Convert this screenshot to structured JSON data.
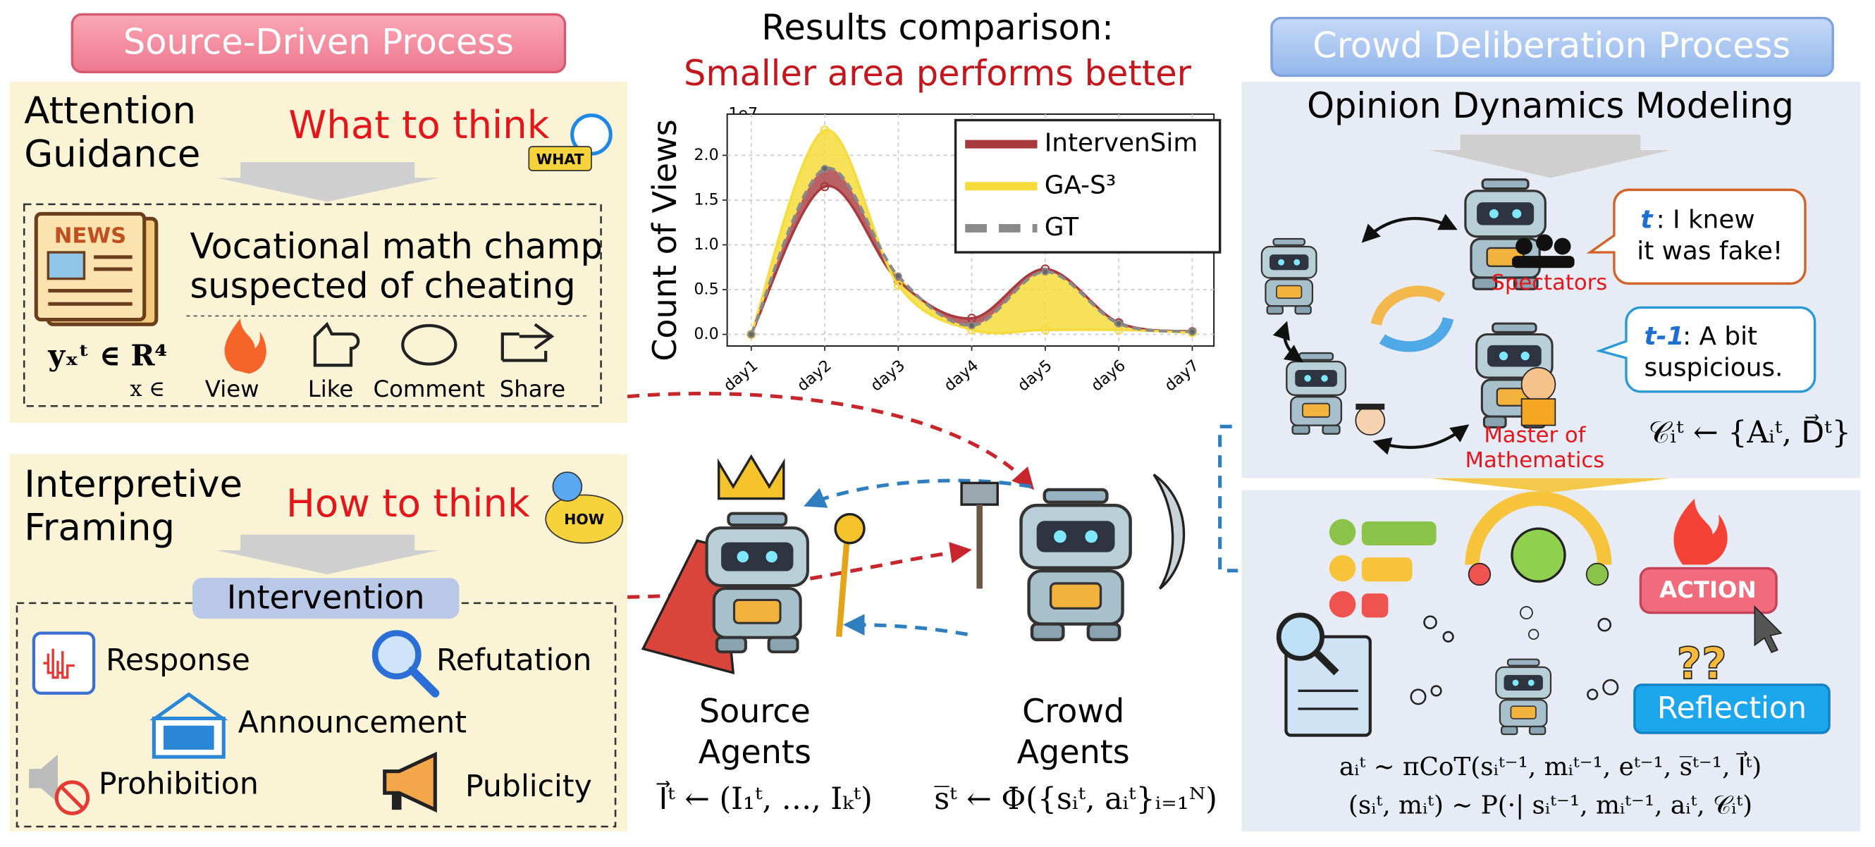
{
  "left": {
    "title": "Source-Driven Process",
    "attention": {
      "title_lines": [
        "Attention",
        "Guidance"
      ],
      "subtitle": "What to think",
      "badge": "WHAT",
      "news_icon": "NEWS",
      "headline_lines": [
        "Vocational math champ",
        "suspected of cheating"
      ],
      "formula": "yₓᵗ ∈ R⁴",
      "formula_sub": "x ∈",
      "metrics": [
        "View",
        "Like",
        "Comment",
        "Share"
      ]
    },
    "framing": {
      "title_lines": [
        "Interpretive",
        "Framing"
      ],
      "subtitle": "How to think",
      "badge": "HOW",
      "box_title": "Intervention",
      "items": [
        "Response",
        "Refutation",
        "Announcement",
        "Prohibition",
        "Publicity"
      ]
    }
  },
  "chart_data": {
    "type": "line",
    "title": "Results comparison:",
    "subtitle": "Smaller area performs better",
    "y_label": "Count of Views",
    "y_offset_label": "1e7",
    "categories": [
      "day1",
      "day2",
      "day3",
      "day4",
      "day5",
      "day6",
      "day7"
    ],
    "series": [
      {
        "name": "IntervenSim",
        "color": "#a83a3e",
        "values": [
          0,
          1.65,
          0.6,
          0.18,
          0.73,
          0.13,
          0.03
        ]
      },
      {
        "name": "GA-S³",
        "color": "#f5dc3c",
        "values": [
          0,
          2.28,
          0.55,
          0.05,
          0.05,
          0.05,
          0.02
        ]
      },
      {
        "name": "GT",
        "color": "#8a8a8a",
        "values": [
          0,
          1.85,
          0.65,
          0.1,
          0.7,
          0.12,
          0.03
        ]
      }
    ],
    "ylim": [
      -0.13,
      2.46
    ],
    "yticks": [
      {
        "value": 0,
        "label": "0.0"
      },
      0.5,
      {
        "value": 1,
        "label": "1.0"
      },
      1.5,
      {
        "value": 2,
        "label": "2.0"
      }
    ],
    "grid": true,
    "legend": "upper right"
  },
  "center": {
    "source_lines": [
      "Source",
      "Agents"
    ],
    "crowd_lines": [
      "Crowd",
      "Agents"
    ],
    "source_formula": "I⃗ᵗ ← (I₁ᵗ, …, Iₖᵗ)",
    "crowd_formula": "s̅ᵗ ← Φ({sᵢᵗ, aᵢᵗ}ᵢ₌₁ᴺ)"
  },
  "right": {
    "title": "Crowd Deliberation Process",
    "modeling_title": "Opinion Dynamics Modeling",
    "bubble_t_tag": "t",
    "bubble_t_lines": [
      ": I knew",
      "it was fake!"
    ],
    "bubble_t1_tag": "t-1",
    "bubble_t1_lines": [
      ":  A bit",
      "suspicious."
    ],
    "spectators": "Spectators",
    "master_lines": [
      "Master of",
      "Mathematics"
    ],
    "context_formula": "𝒞ᵢᵗ ← {Aᵢᵗ, D⃗ᵗ}",
    "action": "ACTION",
    "reflection": "Reflection",
    "action_formula": "aᵢᵗ ~ πCoT(sᵢᵗ⁻¹, mᵢᵗ⁻¹, eᵗ⁻¹, s̅ᵗ⁻¹, I⃗ᵗ)",
    "state_formula": "(sᵢᵗ, mᵢᵗ) ~ P(·| sᵢᵗ⁻¹, mᵢᵗ⁻¹, aᵢᵗ, 𝒞ᵢᵗ)"
  }
}
